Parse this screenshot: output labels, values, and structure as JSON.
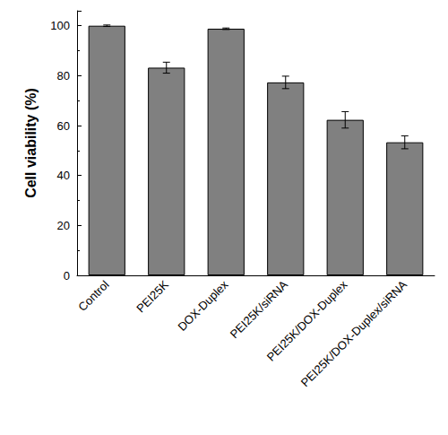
{
  "chart_data": {
    "type": "bar",
    "y_label": "Cell viability (%)",
    "categories": [
      "Control",
      "PEI25K",
      "DOX-Duplex",
      "PEI25K/siRNA",
      "PEI25K/DOX-Duplex",
      "PEI25K/DOX-Duplex/siRNA"
    ],
    "values": [
      100,
      83.2,
      98.8,
      77.3,
      62.3,
      53.3
    ],
    "errors": [
      0.3,
      2.2,
      0.3,
      2.5,
      3.3,
      2.6
    ],
    "color": "#808080",
    "ylim": [
      0,
      106
    ],
    "yticks": [
      0,
      20,
      40,
      60,
      80,
      100
    ],
    "grid": false
  }
}
